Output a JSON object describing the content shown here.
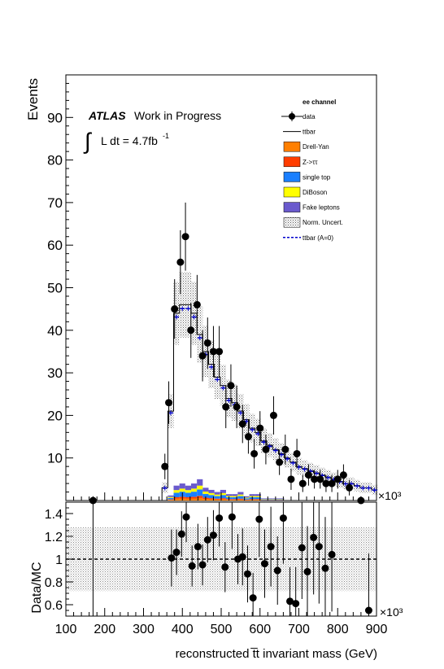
{
  "chart_data": [
    {
      "type": "histogram",
      "panel": "main",
      "ylabel": "Events",
      "y_ticks": [
        10,
        20,
        30,
        40,
        50,
        60,
        70,
        80,
        90
      ],
      "ylim": [
        0,
        100
      ],
      "xlim": [
        100,
        900
      ],
      "x_multiplier": "×10³",
      "atlas_label": "ATLAS",
      "work_label": "Work in Progress",
      "lumi_label": "L dt = 4.7fb",
      "lumi_exponent": "-1",
      "legend": {
        "title": "ee channel",
        "placement": "top-right",
        "entries": [
          {
            "label": "data",
            "style": "marker",
            "color": "#000000"
          },
          {
            "label": "ttbar",
            "style": "line",
            "color": "#000000"
          },
          {
            "label": "Drell-Yan",
            "style": "fill",
            "color": "#ff7f00"
          },
          {
            "label": "Z->ττ",
            "style": "fill",
            "color": "#ff3d00"
          },
          {
            "label": "single top",
            "style": "fill",
            "color": "#1a7fff"
          },
          {
            "label": "DiBoson",
            "style": "fill",
            "color": "#ffff00"
          },
          {
            "label": "Fake leptons",
            "style": "fill",
            "color": "#6a5acd"
          },
          {
            "label": "Norm. Uncert.",
            "style": "hatch",
            "color": "#555555"
          },
          {
            "label": "ttbar (A=0)",
            "style": "dashed",
            "color": "#0000cc"
          }
        ]
      },
      "bin_width": 15,
      "mc_total": [
        {
          "x": 355,
          "y": 3
        },
        {
          "x": 370,
          "y": 21
        },
        {
          "x": 385,
          "y": 44
        },
        {
          "x": 400,
          "y": 46
        },
        {
          "x": 415,
          "y": 46
        },
        {
          "x": 430,
          "y": 44
        },
        {
          "x": 445,
          "y": 39
        },
        {
          "x": 460,
          "y": 35
        },
        {
          "x": 475,
          "y": 32
        },
        {
          "x": 490,
          "y": 29
        },
        {
          "x": 505,
          "y": 27
        },
        {
          "x": 520,
          "y": 24
        },
        {
          "x": 535,
          "y": 23
        },
        {
          "x": 550,
          "y": 21
        },
        {
          "x": 565,
          "y": 19
        },
        {
          "x": 580,
          "y": 17
        },
        {
          "x": 595,
          "y": 16
        },
        {
          "x": 610,
          "y": 14
        },
        {
          "x": 625,
          "y": 13
        },
        {
          "x": 640,
          "y": 12
        },
        {
          "x": 655,
          "y": 11
        },
        {
          "x": 670,
          "y": 10
        },
        {
          "x": 685,
          "y": 9
        },
        {
          "x": 700,
          "y": 8
        },
        {
          "x": 715,
          "y": 7.5
        },
        {
          "x": 730,
          "y": 7
        },
        {
          "x": 745,
          "y": 6.5
        },
        {
          "x": 760,
          "y": 6
        },
        {
          "x": 775,
          "y": 5.5
        },
        {
          "x": 790,
          "y": 5
        },
        {
          "x": 805,
          "y": 4.5
        },
        {
          "x": 820,
          "y": 4
        },
        {
          "x": 835,
          "y": 4
        },
        {
          "x": 850,
          "y": 3.5
        },
        {
          "x": 865,
          "y": 3
        },
        {
          "x": 880,
          "y": 3
        },
        {
          "x": 895,
          "y": 2.5
        }
      ],
      "bkg_total": [
        {
          "x": 370,
          "y": 1.2
        },
        {
          "x": 385,
          "y": 3.5
        },
        {
          "x": 400,
          "y": 4
        },
        {
          "x": 415,
          "y": 3.5
        },
        {
          "x": 430,
          "y": 4
        },
        {
          "x": 445,
          "y": 5
        },
        {
          "x": 460,
          "y": 3
        },
        {
          "x": 475,
          "y": 2.5
        },
        {
          "x": 490,
          "y": 2
        },
        {
          "x": 505,
          "y": 2.5
        },
        {
          "x": 520,
          "y": 1.5
        },
        {
          "x": 535,
          "y": 1.5
        },
        {
          "x": 550,
          "y": 2
        },
        {
          "x": 565,
          "y": 1
        },
        {
          "x": 580,
          "y": 1.5
        },
        {
          "x": 595,
          "y": 1.5
        },
        {
          "x": 610,
          "y": 0.5
        },
        {
          "x": 625,
          "y": 0.5
        },
        {
          "x": 640,
          "y": 0.5
        },
        {
          "x": 655,
          "y": 0.5
        }
      ],
      "data_points": [
        {
          "x": 170,
          "y": 0,
          "err": 1
        },
        {
          "x": 355,
          "y": 8,
          "err": 3
        },
        {
          "x": 365,
          "y": 23,
          "err": 5
        },
        {
          "x": 380,
          "y": 45,
          "err": 7
        },
        {
          "x": 395,
          "y": 56,
          "err": 7.5
        },
        {
          "x": 408,
          "y": 62,
          "err": 8
        },
        {
          "x": 422,
          "y": 40,
          "err": 6.5
        },
        {
          "x": 438,
          "y": 46,
          "err": 7
        },
        {
          "x": 452,
          "y": 34,
          "err": 6
        },
        {
          "x": 465,
          "y": 37,
          "err": 6
        },
        {
          "x": 480,
          "y": 35,
          "err": 6
        },
        {
          "x": 495,
          "y": 35,
          "err": 6
        },
        {
          "x": 512,
          "y": 22,
          "err": 5
        },
        {
          "x": 525,
          "y": 27,
          "err": 5
        },
        {
          "x": 540,
          "y": 22,
          "err": 5
        },
        {
          "x": 555,
          "y": 18,
          "err": 4.5
        },
        {
          "x": 570,
          "y": 15,
          "err": 4
        },
        {
          "x": 585,
          "y": 11,
          "err": 3.5
        },
        {
          "x": 600,
          "y": 17,
          "err": 4
        },
        {
          "x": 615,
          "y": 12,
          "err": 3.5
        },
        {
          "x": 635,
          "y": 20,
          "err": 4.5
        },
        {
          "x": 650,
          "y": 9,
          "err": 3
        },
        {
          "x": 665,
          "y": 12,
          "err": 3.5
        },
        {
          "x": 680,
          "y": 5,
          "err": 2.5
        },
        {
          "x": 695,
          "y": 11,
          "err": 3.5
        },
        {
          "x": 710,
          "y": 4,
          "err": 2
        },
        {
          "x": 725,
          "y": 6,
          "err": 2.5
        },
        {
          "x": 740,
          "y": 5,
          "err": 2.2
        },
        {
          "x": 755,
          "y": 5,
          "err": 2.2
        },
        {
          "x": 770,
          "y": 4,
          "err": 2
        },
        {
          "x": 785,
          "y": 4,
          "err": 2
        },
        {
          "x": 800,
          "y": 5,
          "err": 2.2
        },
        {
          "x": 815,
          "y": 6,
          "err": 2.5
        },
        {
          "x": 830,
          "y": 3,
          "err": 1.8
        },
        {
          "x": 860,
          "y": 0,
          "err": 1
        }
      ]
    },
    {
      "type": "scatter",
      "panel": "ratio",
      "ylabel": "Data/MC",
      "y_ticks": [
        0.6,
        0.8,
        1,
        1.2,
        1.4
      ],
      "ylim": [
        0.5,
        1.5
      ],
      "xlabel": "reconstructed t̅t invariant mass (GeV)",
      "xlim": [
        100,
        900
      ],
      "x_ticks": [
        100,
        200,
        300,
        400,
        500,
        600,
        700,
        800,
        900
      ],
      "x_multiplier": "×10³",
      "reference_line": 1,
      "band_halfwidth": 0.28,
      "points": [
        {
          "x": 372,
          "y": 1.01,
          "err": 0.25
        },
        {
          "x": 385,
          "y": 1.06,
          "err": 0.2
        },
        {
          "x": 398,
          "y": 1.22,
          "err": 0.2
        },
        {
          "x": 410,
          "y": 1.37,
          "err": 0.22
        },
        {
          "x": 425,
          "y": 0.94,
          "err": 0.18
        },
        {
          "x": 440,
          "y": 1.11,
          "err": 0.2
        },
        {
          "x": 452,
          "y": 0.95,
          "err": 0.18
        },
        {
          "x": 465,
          "y": 1.17,
          "err": 0.2
        },
        {
          "x": 480,
          "y": 1.21,
          "err": 0.22
        },
        {
          "x": 495,
          "y": 1.36,
          "err": 0.25
        },
        {
          "x": 510,
          "y": 0.93,
          "err": 0.22
        },
        {
          "x": 528,
          "y": 1.37,
          "err": 0.28
        },
        {
          "x": 543,
          "y": 1.0,
          "err": 0.22
        },
        {
          "x": 555,
          "y": 1.02,
          "err": 0.25
        },
        {
          "x": 568,
          "y": 0.87,
          "err": 0.25
        },
        {
          "x": 582,
          "y": 0.66,
          "err": 0.22
        },
        {
          "x": 598,
          "y": 1.35,
          "err": 0.33
        },
        {
          "x": 612,
          "y": 0.96,
          "err": 0.3
        },
        {
          "x": 628,
          "y": 1.11,
          "err": 0.35
        },
        {
          "x": 645,
          "y": 0.9,
          "err": 0.3
        },
        {
          "x": 660,
          "y": 1.36,
          "err": 0.4
        },
        {
          "x": 677,
          "y": 0.63,
          "err": 0.3
        },
        {
          "x": 692,
          "y": 0.61,
          "err": 0.32
        },
        {
          "x": 708,
          "y": 1.1,
          "err": 0.45
        },
        {
          "x": 722,
          "y": 0.89,
          "err": 0.4
        },
        {
          "x": 738,
          "y": 1.19,
          "err": 0.5
        },
        {
          "x": 752,
          "y": 1.11,
          "err": 0.5
        },
        {
          "x": 768,
          "y": 0.92,
          "err": 0.45
        },
        {
          "x": 785,
          "y": 1.04,
          "err": 0.5
        },
        {
          "x": 880,
          "y": 0.55,
          "err": 0.5
        }
      ]
    }
  ]
}
